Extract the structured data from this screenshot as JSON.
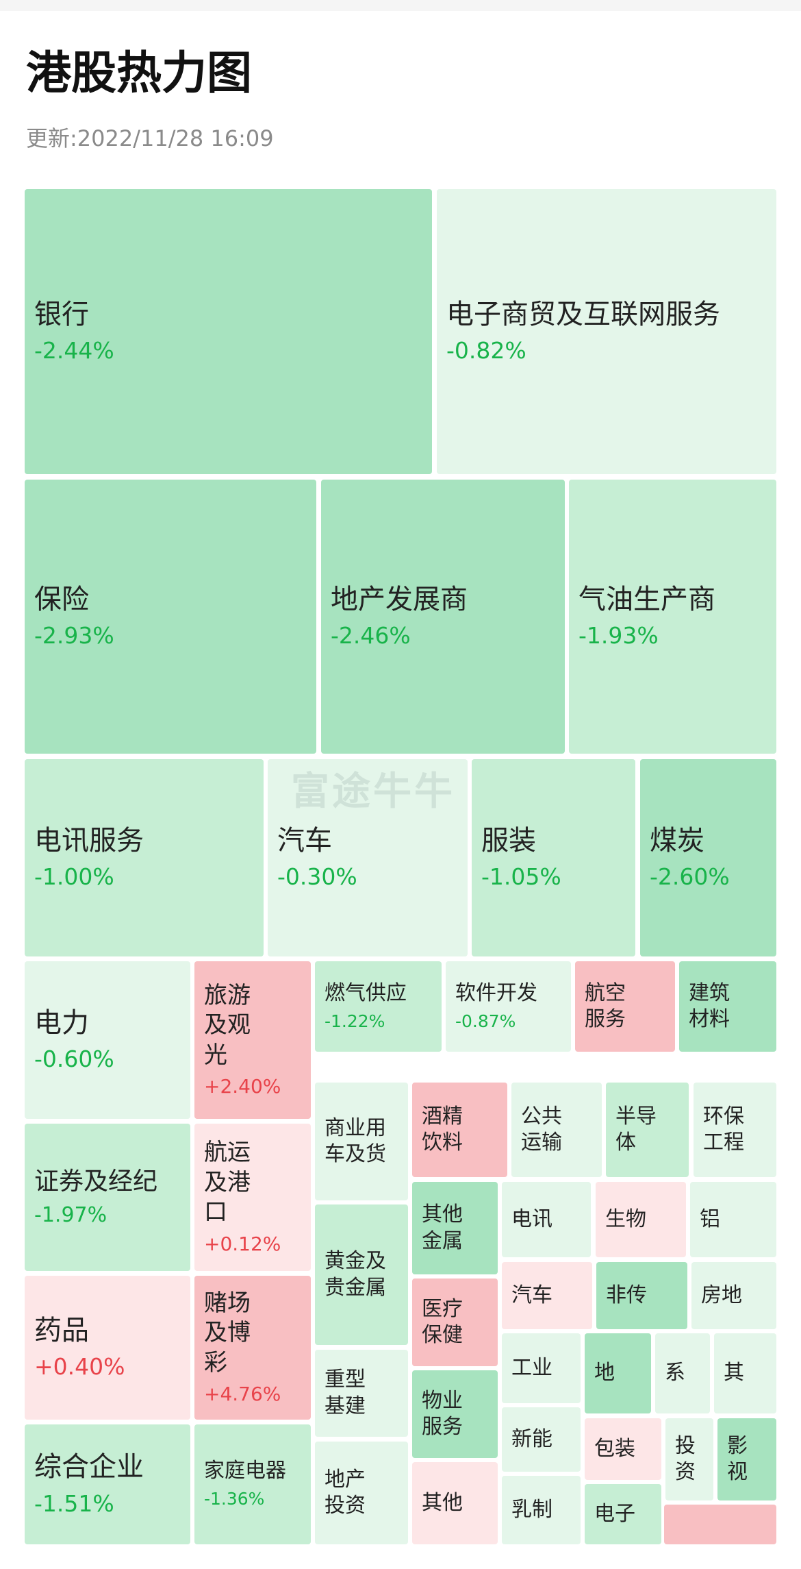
{
  "header": {
    "title": "港股热力图",
    "updated": "更新:2022/11/28 16:09"
  },
  "watermark": "富途牛牛",
  "colors": {
    "up_text": "#e8434a",
    "down_text": "#18b34a",
    "down_strong": "#a7e3bf",
    "down_medium": "#c6eed4",
    "down_light": "#e4f6ea",
    "up_light": "#fde6e7",
    "up_strong": "#f8bfc2"
  },
  "chart_data": {
    "type": "heatmap",
    "title": "港股热力图",
    "sectors": [
      {
        "name": "银行",
        "change": "-2.44%",
        "value": -2.44
      },
      {
        "name": "电子商贸及互联网服务",
        "change": "-0.82%",
        "value": -0.82
      },
      {
        "name": "保险",
        "change": "-2.93%",
        "value": -2.93
      },
      {
        "name": "地产发展商",
        "change": "-2.46%",
        "value": -2.46
      },
      {
        "name": "气油生产商",
        "change": "-1.93%",
        "value": -1.93
      },
      {
        "name": "电讯服务",
        "change": "-1.00%",
        "value": -1.0
      },
      {
        "name": "汽车",
        "change": "-0.30%",
        "value": -0.3
      },
      {
        "name": "服装",
        "change": "-1.05%",
        "value": -1.05
      },
      {
        "name": "煤炭",
        "change": "-2.60%",
        "value": -2.6
      },
      {
        "name": "电力",
        "change": "-0.60%",
        "value": -0.6
      },
      {
        "name": "旅游及观光",
        "change": "+2.40%",
        "value": 2.4
      },
      {
        "name": "燃气供应",
        "change": "-1.22%",
        "value": -1.22
      },
      {
        "name": "软件开发",
        "change": "-0.87%",
        "value": -0.87
      },
      {
        "name": "航空服务",
        "change": "",
        "value": 2.0
      },
      {
        "name": "建筑材料",
        "change": "",
        "value": -2.5
      },
      {
        "name": "证券及经纪",
        "change": "-1.97%",
        "value": -1.97
      },
      {
        "name": "航运及港口",
        "change": "+0.12%",
        "value": 0.12
      },
      {
        "name": "商业用车及货",
        "change": "",
        "value": -0.5
      },
      {
        "name": "酒精饮料",
        "change": "",
        "value": 2.0
      },
      {
        "name": "公共运输",
        "change": "",
        "value": -0.3
      },
      {
        "name": "半导体",
        "change": "",
        "value": -1.5
      },
      {
        "name": "环保工程",
        "change": "",
        "value": -0.3
      },
      {
        "name": "药品",
        "change": "+0.40%",
        "value": 0.4
      },
      {
        "name": "赌场及博彩",
        "change": "+4.76%",
        "value": 4.76
      },
      {
        "name": "黄金及贵金属",
        "change": "",
        "value": -1.5
      },
      {
        "name": "其他金属",
        "change": "",
        "value": -2.5
      },
      {
        "name": "电讯",
        "change": "",
        "value": -0.5
      },
      {
        "name": "生物",
        "change": "",
        "value": 1.0
      },
      {
        "name": "铝",
        "change": "",
        "value": -0.3
      },
      {
        "name": "医疗保健",
        "change": "",
        "value": 2.0
      },
      {
        "name": "汽车",
        "change": "",
        "value": 0.3
      },
      {
        "name": "非传",
        "change": "",
        "value": -2.0
      },
      {
        "name": "房地",
        "change": "",
        "value": -0.3
      },
      {
        "name": "重型基建",
        "change": "",
        "value": -0.3
      },
      {
        "name": "物业服务",
        "change": "",
        "value": -2.0
      },
      {
        "name": "工业",
        "change": "",
        "value": -0.5
      },
      {
        "name": "地",
        "change": "",
        "value": -2.0
      },
      {
        "name": "系",
        "change": "",
        "value": -0.3
      },
      {
        "name": "其",
        "change": "",
        "value": -0.3
      },
      {
        "name": "综合企业",
        "change": "-1.51%",
        "value": -1.51
      },
      {
        "name": "家庭电器",
        "change": "-1.36%",
        "value": -1.36
      },
      {
        "name": "地产投资",
        "change": "",
        "value": -0.5
      },
      {
        "name": "其他",
        "change": "",
        "value": 0.3
      },
      {
        "name": "新能",
        "change": "",
        "value": -0.5
      },
      {
        "name": "包装",
        "change": "",
        "value": 0.3
      },
      {
        "name": "投资",
        "change": "",
        "value": -0.3
      },
      {
        "name": "影视",
        "change": "",
        "value": -2.0
      },
      {
        "name": "乳制",
        "change": "",
        "value": -0.5
      },
      {
        "name": "电子",
        "change": "",
        "value": -1.5
      },
      {
        "name": "",
        "change": "",
        "value": 2.0
      }
    ]
  }
}
